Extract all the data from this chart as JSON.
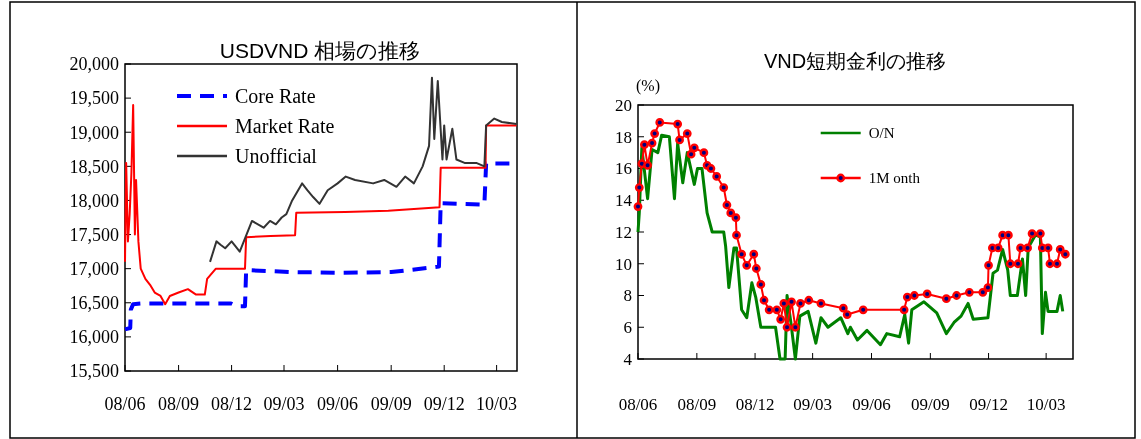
{
  "chart_data": [
    {
      "type": "line",
      "title": "USDVND 相場の推移",
      "xlim": [
        "2008-06-01",
        "2010-04-05"
      ],
      "xticks": [
        {
          "value": "2008-06-01",
          "label": "08/06"
        },
        {
          "value": "2008-09-01",
          "label": "08/09"
        },
        {
          "value": "2008-12-01",
          "label": "08/12"
        },
        {
          "value": "2009-03-01",
          "label": "09/03"
        },
        {
          "value": "2009-06-01",
          "label": "09/06"
        },
        {
          "value": "2009-09-01",
          "label": "09/09"
        },
        {
          "value": "2009-12-01",
          "label": "09/12"
        },
        {
          "value": "2010-03-01",
          "label": "10/03"
        }
      ],
      "ylim": [
        15500,
        20000
      ],
      "yticks": [
        {
          "value": 15500,
          "label": "15,500"
        },
        {
          "value": 16000,
          "label": "16,000"
        },
        {
          "value": 16500,
          "label": "16,500"
        },
        {
          "value": 17000,
          "label": "17,000"
        },
        {
          "value": 17500,
          "label": "17,500"
        },
        {
          "value": 18000,
          "label": "18,000"
        },
        {
          "value": 18500,
          "label": "18,500"
        },
        {
          "value": 19000,
          "label": "19,000"
        },
        {
          "value": 19500,
          "label": "19,500"
        },
        {
          "value": 20000,
          "label": "20,000"
        }
      ],
      "legend": "top left",
      "series": [
        {
          "name": "Core Rate",
          "color": "#0000ff",
          "line_style": "dashed",
          "marker": "none",
          "x": [
            "2008-06-01",
            "2008-06-10",
            "2008-06-11",
            "2008-06-15",
            "2008-07-01",
            "2008-11-30",
            "2008-12-10",
            "2008-12-24",
            "2008-12-26",
            "2009-03-15",
            "2009-06-01",
            "2009-09-01",
            "2009-11-22",
            "2009-11-25",
            "2010-02-08",
            "2010-02-11",
            "2010-04-05"
          ],
          "values": [
            16110,
            16130,
            16400,
            16480,
            16490,
            16490,
            16450,
            16450,
            16980,
            16950,
            16940,
            16950,
            17030,
            17960,
            17940,
            18540,
            18540
          ]
        },
        {
          "name": "Market Rate",
          "color": "#ff0000",
          "line_style": "solid",
          "marker": "none",
          "x": [
            "2008-06-01",
            "2008-06-03",
            "2008-06-06",
            "2008-06-09",
            "2008-06-12",
            "2008-06-15",
            "2008-06-18",
            "2008-06-20",
            "2008-06-24",
            "2008-06-28",
            "2008-07-06",
            "2008-07-15",
            "2008-07-22",
            "2008-08-01",
            "2008-08-09",
            "2008-08-17",
            "2008-09-01",
            "2008-09-17",
            "2008-10-01",
            "2008-10-16",
            "2008-10-20",
            "2008-11-04",
            "2008-12-24",
            "2008-12-26",
            "2009-02-06",
            "2009-03-20",
            "2009-03-22",
            "2009-06-14",
            "2009-08-27",
            "2009-11-23",
            "2009-11-25",
            "2010-02-10",
            "2010-02-11",
            "2010-04-04"
          ],
          "values": [
            17100,
            18550,
            17400,
            17800,
            18400,
            19400,
            17500,
            18300,
            17400,
            17000,
            16850,
            16750,
            16650,
            16600,
            16480,
            16600,
            16650,
            16700,
            16620,
            16620,
            16850,
            17000,
            17000,
            17460,
            17480,
            17490,
            17820,
            17830,
            17850,
            17900,
            18480,
            18480,
            19100,
            19100
          ]
        },
        {
          "name": "Unofficial",
          "color": "#333333",
          "line_style": "solid",
          "marker": "none",
          "x": [
            "2008-10-25",
            "2008-11-05",
            "2008-11-12",
            "2008-11-20",
            "2008-12-01",
            "2008-12-15",
            "2009-01-05",
            "2009-01-25",
            "2009-02-05",
            "2009-02-15",
            "2009-02-25",
            "2009-03-05",
            "2009-03-15",
            "2009-04-01",
            "2009-04-10",
            "2009-04-20",
            "2009-05-01",
            "2009-05-15",
            "2009-06-01",
            "2009-06-15",
            "2009-07-01",
            "2009-08-01",
            "2009-08-20",
            "2009-09-10",
            "2009-09-25",
            "2009-10-10",
            "2009-10-25",
            "2009-11-05",
            "2009-11-10",
            "2009-11-14",
            "2009-11-20",
            "2009-11-28",
            "2009-12-01",
            "2009-12-05",
            "2009-12-15",
            "2009-12-22",
            "2010-01-05",
            "2010-01-25",
            "2010-02-08",
            "2010-02-11",
            "2010-02-25",
            "2010-03-10",
            "2010-04-04"
          ],
          "values": [
            17100,
            17400,
            17350,
            17300,
            17400,
            17250,
            17700,
            17600,
            17700,
            17650,
            17750,
            17800,
            18000,
            18250,
            18150,
            18050,
            17950,
            18150,
            18250,
            18350,
            18300,
            18250,
            18300,
            18200,
            18350,
            18250,
            18500,
            18800,
            19800,
            18900,
            19750,
            18600,
            19100,
            18600,
            19050,
            18600,
            18550,
            18550,
            18500,
            19100,
            19200,
            19150,
            19120
          ]
        }
      ]
    },
    {
      "type": "line",
      "title": "VND短期金利の推移",
      "ylabel": "(%)",
      "xlim": [
        "2008-06-01",
        "2010-04-12"
      ],
      "xticks": [
        {
          "value": "2008-06-01",
          "label": "08/06"
        },
        {
          "value": "2008-09-01",
          "label": "08/09"
        },
        {
          "value": "2008-12-01",
          "label": "08/12"
        },
        {
          "value": "2009-03-01",
          "label": "09/03"
        },
        {
          "value": "2009-06-01",
          "label": "09/06"
        },
        {
          "value": "2009-09-01",
          "label": "09/09"
        },
        {
          "value": "2009-12-01",
          "label": "09/12"
        },
        {
          "value": "2010-03-01",
          "label": "10/03"
        }
      ],
      "ylim": [
        4,
        20
      ],
      "yticks": [
        4,
        6,
        8,
        10,
        12,
        14,
        16,
        18,
        20
      ],
      "legend": "top right",
      "series": [
        {
          "name": "O/N",
          "color": "#008000",
          "line_style": "solid",
          "marker": "none",
          "x": [
            "2008-06-01",
            "2008-06-03",
            "2008-06-07",
            "2008-06-16",
            "2008-06-23",
            "2008-07-02",
            "2008-07-08",
            "2008-07-20",
            "2008-07-28",
            "2008-08-02",
            "2008-08-10",
            "2008-08-17",
            "2008-08-28",
            "2008-09-02",
            "2008-09-09",
            "2008-09-17",
            "2008-09-25",
            "2008-10-13",
            "2008-10-16",
            "2008-10-21",
            "2008-10-29",
            "2008-11-02",
            "2008-11-10",
            "2008-11-18",
            "2008-11-26",
            "2008-12-02",
            "2008-12-10",
            "2009-01-02",
            "2009-01-09",
            "2009-01-17",
            "2009-01-20",
            "2009-01-26",
            "2009-02-02",
            "2009-02-09",
            "2009-02-22",
            "2009-03-06",
            "2009-03-14",
            "2009-03-25",
            "2009-04-14",
            "2009-04-25",
            "2009-04-29",
            "2009-05-10",
            "2009-05-25",
            "2009-06-15",
            "2009-06-25",
            "2009-07-15",
            "2009-07-23",
            "2009-07-29",
            "2009-08-03",
            "2009-08-22",
            "2009-09-11",
            "2009-09-26",
            "2009-10-08",
            "2009-10-19",
            "2009-10-30",
            "2009-11-07",
            "2009-11-30",
            "2009-12-08",
            "2009-12-15",
            "2009-12-23",
            "2009-12-31",
            "2010-01-04",
            "2010-01-15",
            "2010-01-23",
            "2010-01-28",
            "2010-02-01",
            "2010-02-12",
            "2010-02-20",
            "2010-02-23",
            "2010-02-28",
            "2010-03-04",
            "2010-03-18",
            "2010-03-23",
            "2010-03-27"
          ],
          "values": [
            12,
            13.2,
            17.3,
            14.1,
            17.2,
            17,
            18.1,
            18,
            14.1,
            17.6,
            15.1,
            17,
            15,
            16,
            16,
            13.2,
            12,
            12,
            11.1,
            8.5,
            11,
            11,
            7.1,
            6.6,
            8.8,
            7.9,
            6,
            6,
            4,
            4,
            8,
            6.3,
            4,
            6.7,
            7,
            5,
            6.6,
            6,
            6.6,
            5.6,
            6,
            5.2,
            5.8,
            4.9,
            5.6,
            5.4,
            6.8,
            5,
            7.1,
            7.6,
            6.9,
            5.6,
            6.3,
            6.7,
            7.5,
            6.5,
            6.6,
            9.4,
            9.6,
            10.9,
            9.6,
            8,
            8,
            10.3,
            8,
            11,
            11.8,
            11.7,
            5.6,
            8.2,
            7,
            7,
            8,
            7
          ]
        },
        {
          "name": "1M onth",
          "color": "#ff0000",
          "line_style": "solid",
          "marker": "circle",
          "x": [
            "2008-06-01",
            "2008-06-03",
            "2008-06-07",
            "2008-06-11",
            "2008-06-16",
            "2008-06-23",
            "2008-06-27",
            "2008-07-05",
            "2008-08-02",
            "2008-08-05",
            "2008-08-17",
            "2008-08-23",
            "2008-08-28",
            "2008-09-12",
            "2008-09-17",
            "2008-09-23",
            "2008-10-02",
            "2008-10-13",
            "2008-10-18",
            "2008-10-24",
            "2008-11-01",
            "2008-11-02",
            "2008-11-10",
            "2008-11-18",
            "2008-11-29",
            "2008-12-03",
            "2008-12-10",
            "2008-12-15",
            "2008-12-23",
            "2009-01-04",
            "2009-01-10",
            "2009-01-15",
            "2009-01-20",
            "2009-01-27",
            "2009-02-02",
            "2009-02-10",
            "2009-02-23",
            "2009-03-14",
            "2009-04-18",
            "2009-04-24",
            "2009-05-19",
            "2009-07-22",
            "2009-07-27",
            "2009-08-07",
            "2009-08-27",
            "2009-09-26",
            "2009-10-12",
            "2009-11-01",
            "2009-11-22",
            "2009-11-30",
            "2009-12-01",
            "2009-12-07",
            "2009-12-16",
            "2009-12-23",
            "2010-01-01",
            "2010-01-04",
            "2010-01-16",
            "2010-01-20",
            "2010-01-31",
            "2010-02-07",
            "2010-02-20",
            "2010-02-23",
            "2010-03-04",
            "2010-03-07",
            "2010-03-18",
            "2010-03-23",
            "2010-03-31"
          ],
          "values": [
            13.6,
            14.8,
            16.3,
            17.5,
            16.2,
            17.6,
            18.2,
            18.9,
            18.8,
            17.8,
            18.2,
            16.9,
            17.3,
            17,
            16.2,
            16,
            15.5,
            14.8,
            13.7,
            13.2,
            12.9,
            11.8,
            10.6,
            9.9,
            10.6,
            9.7,
            8.7,
            7.7,
            7.1,
            7.1,
            6.5,
            7.5,
            6,
            7.6,
            6,
            7.5,
            7.7,
            7.5,
            7.2,
            6.8,
            7.1,
            7.1,
            7.9,
            8,
            8.1,
            7.8,
            8,
            8.2,
            8.2,
            8.5,
            9.9,
            11,
            11,
            11.8,
            11.8,
            10,
            10,
            11,
            11,
            11.9,
            11.9,
            11,
            11,
            10,
            10,
            10.9,
            10.6
          ]
        }
      ]
    }
  ]
}
